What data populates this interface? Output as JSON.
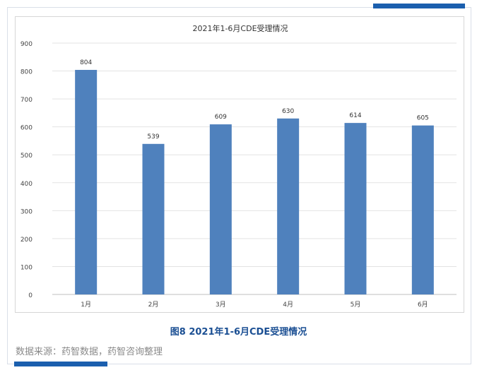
{
  "colors": {
    "accent": "#1b5fae",
    "bar": "#4f81bd",
    "caption": "#1b4f93",
    "grid": "#e3e3e3"
  },
  "caption": "图8 2021年1-6月CDE受理情况",
  "source": "数据来源：药智数据，药智咨询整理",
  "chart_data": {
    "type": "bar",
    "title": "2021年1-6月CDE受理情况",
    "xlabel": "",
    "ylabel": "",
    "categories": [
      "1月",
      "2月",
      "3月",
      "4月",
      "5月",
      "6月"
    ],
    "values": [
      804,
      539,
      609,
      630,
      614,
      605
    ],
    "ylim": [
      0,
      900
    ],
    "yticks": [
      0,
      100,
      200,
      300,
      400,
      500,
      600,
      700,
      800,
      900
    ],
    "grid": true,
    "legend": "none",
    "data_labels": true
  }
}
